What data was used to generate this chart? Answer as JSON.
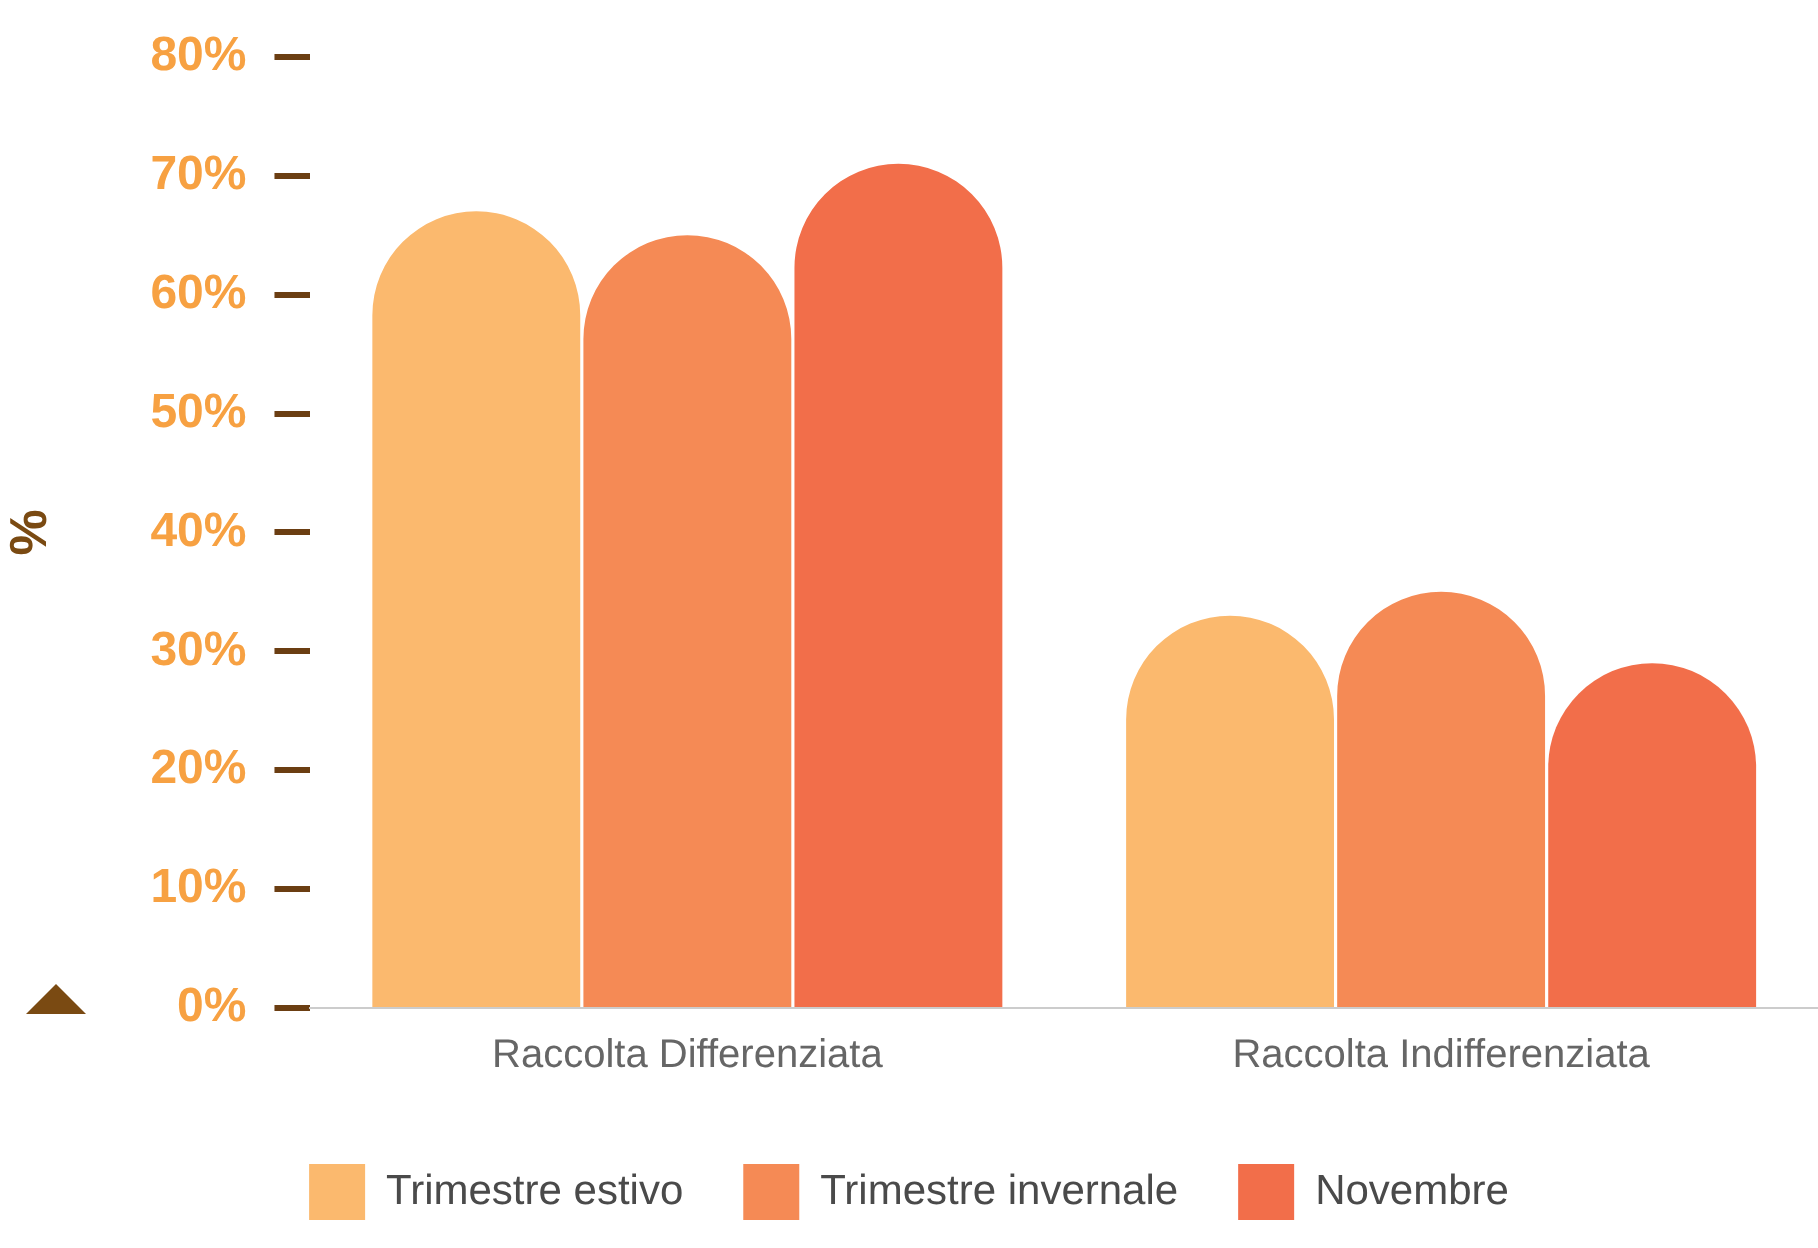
{
  "chart_data": {
    "type": "bar",
    "ylabel": "%",
    "categories": [
      "Raccolta Differenziata",
      "Raccolta Indifferenziata"
    ],
    "series": [
      {
        "name": "Trimestre estivo",
        "color": "#fbb96e",
        "values": [
          67,
          33
        ]
      },
      {
        "name": "Trimestre invernale",
        "color": "#f58a55",
        "values": [
          65,
          35
        ]
      },
      {
        "name": "Novembre",
        "color": "#f26e4a",
        "values": [
          71,
          29
        ]
      }
    ],
    "ylim": [
      0,
      80
    ],
    "yticks": [
      {
        "value": 0,
        "label": "0%"
      },
      {
        "value": 10,
        "label": "10%"
      },
      {
        "value": 20,
        "label": "20%"
      },
      {
        "value": 30,
        "label": "30%"
      },
      {
        "value": 40,
        "label": "40%"
      },
      {
        "value": 50,
        "label": "50%"
      },
      {
        "value": 60,
        "label": "60%"
      },
      {
        "value": 70,
        "label": "70%"
      },
      {
        "value": 80,
        "label": "80%"
      }
    ],
    "grid": false,
    "legend": "bottom"
  }
}
